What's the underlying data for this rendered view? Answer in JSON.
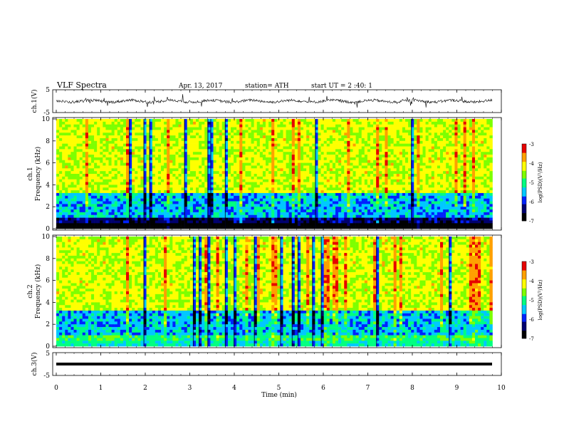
{
  "header": {
    "title": "VLF  Spectra",
    "date": "Apr. 13, 2017",
    "station": "station= ATH",
    "start": "start  UT  =   2  :40: 1"
  },
  "colors": {
    "scale": [
      "#000000",
      "#00006e",
      "#0022ff",
      "#00c8ff",
      "#00ff80",
      "#7dff00",
      "#ffff00",
      "#ffa000",
      "#e60000",
      "#ffffff"
    ],
    "axis": "#000000",
    "waveform": "#000000"
  },
  "chart_data": [
    {
      "type": "line",
      "id": "ch1-waveform",
      "ylabel": "ch.1(V)",
      "ylim": [
        -5,
        5
      ],
      "yticks": [
        "5",
        "-5"
      ],
      "description_points_per_min": 60,
      "baseline": 0,
      "xlim": [
        0,
        10
      ],
      "x_extent": 9.8
    },
    {
      "type": "heatmap",
      "id": "ch1-spectrogram",
      "ylabel": "ch.1\nFrequency  (kHz)",
      "ylim": [
        0,
        10
      ],
      "yticks": [
        "0",
        "2",
        "4",
        "6",
        "8",
        "10"
      ],
      "xlim": [
        0,
        10
      ],
      "x_extent": 9.8,
      "colorbar": {
        "label": "log(PSD)(V²/Hz)",
        "range": [
          -7,
          -3
        ],
        "ticks": [
          "-3",
          "-4",
          "-5",
          "-6",
          "-7"
        ]
      }
    },
    {
      "type": "heatmap",
      "id": "ch2-spectrogram",
      "ylabel": "ch.2\nFrequency  (kHz)",
      "ylim": [
        0,
        10
      ],
      "yticks": [
        "0",
        "2",
        "4",
        "6",
        "8",
        "10"
      ],
      "xlim": [
        0,
        10
      ],
      "x_extent": 9.8,
      "colorbar": {
        "label": "log(PSD)(V²/Hz)",
        "range": [
          -7,
          -3
        ],
        "ticks": [
          "-3",
          "-4",
          "-5",
          "-6",
          "-7"
        ]
      }
    },
    {
      "type": "line",
      "id": "ch3-waveform",
      "ylabel": "ch.3(V)",
      "ylim": [
        -5,
        5
      ],
      "yticks": [
        "5",
        "-5"
      ],
      "baseline": -1.3,
      "xlim": [
        0,
        10
      ],
      "x_extent": 9.8,
      "xlabel": "Time  (min)",
      "xticks": [
        "0",
        "1",
        "2",
        "3",
        "4",
        "5",
        "6",
        "7",
        "8",
        "9",
        "10"
      ]
    }
  ]
}
